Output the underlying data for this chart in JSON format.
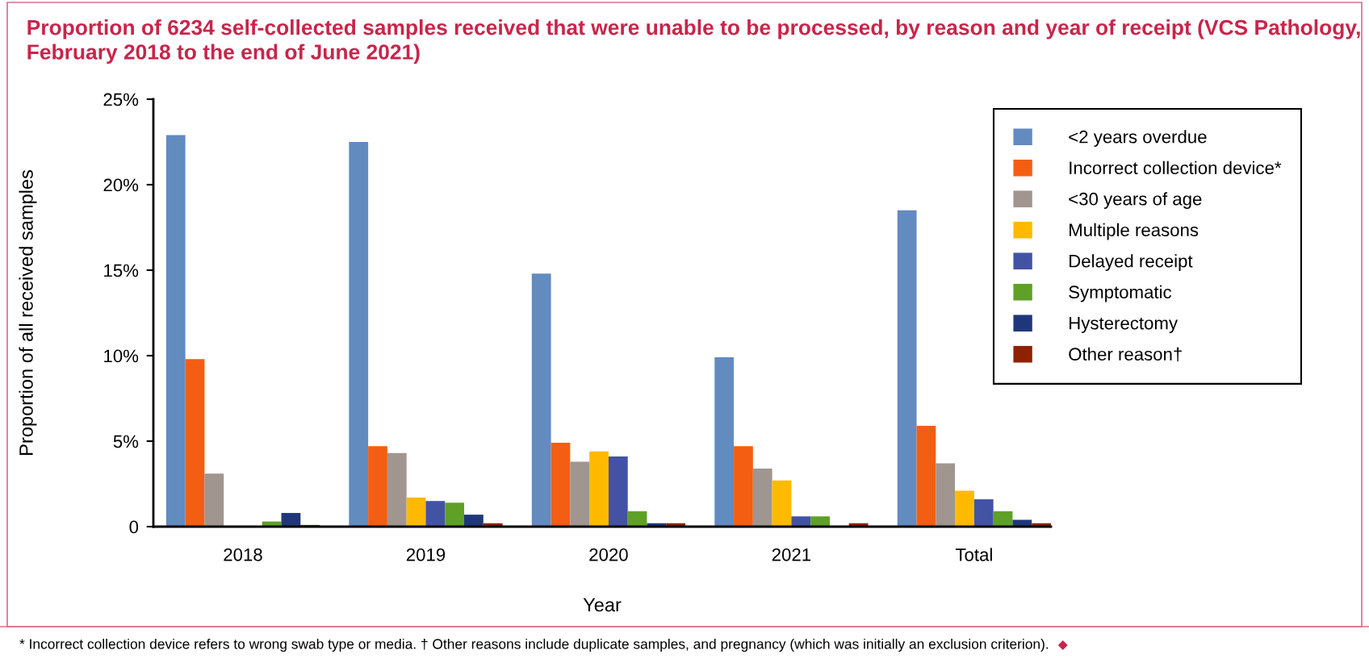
{
  "chart_data": {
    "type": "bar",
    "title": "Proportion of 6234 self-collected samples received that were unable to be processed, by reason and year of receipt (VCS Pathology, February 2018 to the end of June 2021)",
    "xlabel": "Year",
    "ylabel": "Proportion of all received samples",
    "categories": [
      "2018",
      "2019",
      "2020",
      "2021",
      "Total"
    ],
    "series": [
      {
        "name": "<2 years overdue",
        "color": "#628bbf",
        "values": [
          22.9,
          22.5,
          14.8,
          9.9,
          18.5
        ]
      },
      {
        "name": "Incorrect collection device*",
        "color": "#f45e12",
        "values": [
          9.8,
          4.7,
          4.9,
          4.7,
          5.9
        ]
      },
      {
        "name": "<30 years of age",
        "color": "#a0968f",
        "values": [
          3.1,
          4.3,
          3.8,
          3.4,
          3.7
        ]
      },
      {
        "name": "Multiple reasons",
        "color": "#ffba00",
        "values": [
          null,
          1.7,
          4.4,
          2.7,
          2.1
        ]
      },
      {
        "name": "Delayed receipt",
        "color": "#4353a4",
        "values": [
          null,
          1.5,
          4.1,
          0.6,
          1.6
        ]
      },
      {
        "name": "Symptomatic",
        "color": "#5fa026",
        "values": [
          0.3,
          1.4,
          0.9,
          0.6,
          0.9
        ]
      },
      {
        "name": "Hysterectomy",
        "color": "#1f377a",
        "values": [
          0.8,
          0.7,
          0.2,
          null,
          0.4
        ]
      },
      {
        "name": "Other reason†",
        "color": "#8e2200",
        "values": [
          0.1,
          0.2,
          0.2,
          0.2,
          0.2
        ]
      }
    ],
    "ylim": [
      0,
      25
    ],
    "yticks": [
      0,
      {
        "value": 5,
        "label": "5%"
      },
      {
        "value": 10,
        "label": "10%"
      },
      {
        "value": 15,
        "label": "15%"
      },
      {
        "value": 20,
        "label": "20%"
      },
      {
        "value": 25,
        "label": "25%"
      }
    ],
    "grid": false,
    "legend": "top right",
    "annotations": [
      "* Incorrect collection device refers to wrong swab type or media. † Other reasons include duplicate samples, and pregnancy (which was initially an exclusion criterion)."
    ]
  }
}
